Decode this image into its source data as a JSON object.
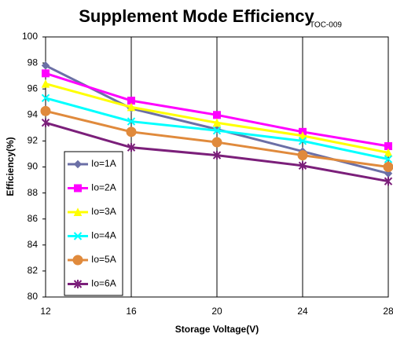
{
  "chart_data": {
    "type": "line",
    "title": "Supplement Mode Efficiency",
    "annotation": "TOC-009",
    "x_label": "Storage Voltage(V)",
    "y_label": "Efficiency(%)",
    "x": [
      12,
      16,
      20,
      24,
      28
    ],
    "xlim": [
      12,
      28
    ],
    "xticks": [
      12,
      16,
      20,
      24,
      28
    ],
    "ylim": [
      80,
      100
    ],
    "yticks": [
      80,
      82,
      84,
      86,
      88,
      90,
      92,
      94,
      96,
      98,
      100
    ],
    "grid": "x",
    "legend": "lower left",
    "series": [
      {
        "name": "Io=1A",
        "color": "#6b6fa6",
        "marker": "diamond",
        "values": [
          97.8,
          94.5,
          92.9,
          91.2,
          89.5
        ]
      },
      {
        "name": "Io=2A",
        "color": "#ff00ff",
        "marker": "square",
        "values": [
          97.2,
          95.1,
          94.0,
          92.7,
          91.6
        ]
      },
      {
        "name": "Io=3A",
        "color": "#ffff00",
        "marker": "triangle",
        "values": [
          96.4,
          94.6,
          93.4,
          92.4,
          91.1
        ]
      },
      {
        "name": "Io=4A",
        "color": "#00ffff",
        "marker": "x",
        "values": [
          95.3,
          93.5,
          92.8,
          92.0,
          90.6
        ]
      },
      {
        "name": "Io=5A",
        "color": "#e08a3c",
        "marker": "circle",
        "values": [
          94.3,
          92.7,
          91.9,
          90.9,
          90.0
        ]
      },
      {
        "name": "Io=6A",
        "color": "#7b1f7a",
        "marker": "star",
        "values": [
          93.4,
          91.5,
          90.9,
          90.1,
          88.9
        ]
      }
    ]
  }
}
